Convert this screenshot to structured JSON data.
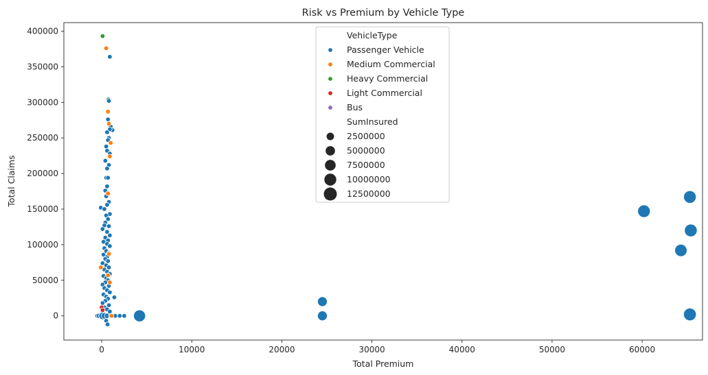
{
  "chart_data": {
    "type": "scatter",
    "title": "Risk vs Premium by Vehicle Type",
    "xlabel": "Total Premium",
    "ylabel": "Total Claims",
    "xlim": [
      -4200,
      66700
    ],
    "ylim": [
      -34000,
      412000
    ],
    "xticks": [
      0,
      10000,
      20000,
      30000,
      40000,
      50000,
      60000
    ],
    "yticks": [
      0,
      50000,
      100000,
      150000,
      200000,
      250000,
      300000,
      350000,
      400000
    ],
    "grid": false,
    "legend": {
      "placement": "top-center",
      "hue_title": "VehicleType",
      "size_title": "SumInsured",
      "hue_entries": [
        {
          "name": "Passenger Vehicle",
          "color": "#1f77b4"
        },
        {
          "name": "Medium Commercial",
          "color": "#ff7f0e"
        },
        {
          "name": "Heavy Commercial",
          "color": "#2ca02c"
        },
        {
          "name": "Light Commercial",
          "color": "#d62728"
        },
        {
          "name": "Bus",
          "color": "#9467bd"
        }
      ],
      "size_entries": [
        {
          "label": "2500000",
          "value": 2500000
        },
        {
          "label": "5000000",
          "value": 5000000
        },
        {
          "label": "7500000",
          "value": 7500000
        },
        {
          "label": "10000000",
          "value": 10000000
        },
        {
          "label": "12500000",
          "value": 12500000
        }
      ]
    },
    "series": [
      {
        "name": "Passenger Vehicle",
        "color": "#1f77b4",
        "points": [
          [
            900,
            364000,
            300000
          ],
          [
            750,
            304000,
            300000
          ],
          [
            800,
            302000,
            300000
          ],
          [
            700,
            276000,
            300000
          ],
          [
            1000,
            266000,
            300000
          ],
          [
            1200,
            261000,
            300000
          ],
          [
            900,
            262000,
            300000
          ],
          [
            600,
            258000,
            300000
          ],
          [
            800,
            250000,
            300000
          ],
          [
            700,
            247000,
            300000
          ],
          [
            500,
            238000,
            300000
          ],
          [
            600,
            232000,
            300000
          ],
          [
            900,
            228000,
            300000
          ],
          [
            400,
            218000,
            300000
          ],
          [
            800,
            212000,
            300000
          ],
          [
            600,
            207000,
            300000
          ],
          [
            500,
            194000,
            300000
          ],
          [
            700,
            194000,
            300000
          ],
          [
            600,
            182000,
            300000
          ],
          [
            400,
            176000,
            300000
          ],
          [
            700,
            172000,
            300000
          ],
          [
            500,
            168000,
            300000
          ],
          [
            800,
            160000,
            300000
          ],
          [
            600,
            156000,
            300000
          ],
          [
            -100,
            152000,
            300000
          ],
          [
            300,
            150000,
            300000
          ],
          [
            900,
            143000,
            300000
          ],
          [
            500,
            141000,
            300000
          ],
          [
            700,
            136000,
            300000
          ],
          [
            400,
            131000,
            300000
          ],
          [
            800,
            126000,
            300000
          ],
          [
            300,
            127000,
            300000
          ],
          [
            100,
            122000,
            300000
          ],
          [
            600,
            118000,
            300000
          ],
          [
            900,
            113000,
            300000
          ],
          [
            400,
            110000,
            300000
          ],
          [
            700,
            106000,
            300000
          ],
          [
            200,
            104000,
            300000
          ],
          [
            600,
            101000,
            300000
          ],
          [
            900,
            98000,
            300000
          ],
          [
            300,
            95000,
            300000
          ],
          [
            500,
            91000,
            300000
          ],
          [
            800,
            88000,
            300000
          ],
          [
            200,
            86000,
            300000
          ],
          [
            600,
            83000,
            300000
          ],
          [
            400,
            80000,
            300000
          ],
          [
            700,
            77000,
            300000
          ],
          [
            100,
            74000,
            300000
          ],
          [
            500,
            71000,
            300000
          ],
          [
            800,
            68000,
            300000
          ],
          [
            300,
            65000,
            300000
          ],
          [
            600,
            62000,
            300000
          ],
          [
            900,
            59000,
            300000
          ],
          [
            200,
            56000,
            300000
          ],
          [
            500,
            53000,
            300000
          ],
          [
            700,
            50000,
            300000
          ],
          [
            400,
            47000,
            300000
          ],
          [
            100,
            44000,
            300000
          ],
          [
            800,
            42000,
            300000
          ],
          [
            300,
            39000,
            300000
          ],
          [
            600,
            36000,
            300000
          ],
          [
            900,
            33000,
            300000
          ],
          [
            200,
            30000,
            300000
          ],
          [
            500,
            27000,
            300000
          ],
          [
            1400,
            26000,
            300000
          ],
          [
            700,
            24000,
            300000
          ],
          [
            400,
            21000,
            300000
          ],
          [
            100,
            18000,
            300000
          ],
          [
            800,
            15000,
            300000
          ],
          [
            300,
            12000,
            300000
          ],
          [
            600,
            9000,
            300000
          ],
          [
            900,
            6000,
            300000
          ],
          [
            200,
            3000,
            300000
          ],
          [
            500,
            -7000,
            300000
          ],
          [
            650,
            -12000,
            300000
          ],
          [
            -500,
            0,
            300000
          ],
          [
            -300,
            0,
            600000
          ],
          [
            0,
            0,
            1200000
          ],
          [
            100,
            0,
            2400000
          ],
          [
            300,
            0,
            1200000
          ],
          [
            600,
            0,
            600000
          ],
          [
            1000,
            0,
            300000
          ],
          [
            1500,
            0,
            300000
          ],
          [
            2000,
            0,
            300000
          ],
          [
            2500,
            0,
            300000
          ],
          [
            4200,
            0,
            9800000
          ],
          [
            24500,
            20000,
            5500000
          ],
          [
            24500,
            0,
            5500000
          ],
          [
            60200,
            147000,
            11200000
          ],
          [
            64300,
            92000,
            10500000
          ],
          [
            65300,
            167000,
            11200000
          ],
          [
            65400,
            120000,
            11500000
          ],
          [
            65300,
            2000,
            11500000
          ]
        ]
      },
      {
        "name": "Medium Commercial",
        "color": "#ff7f0e",
        "points": [
          [
            500,
            376000,
            300000
          ],
          [
            700,
            287000,
            300000
          ],
          [
            800,
            270000,
            300000
          ],
          [
            1000,
            243000,
            300000
          ],
          [
            900,
            224000,
            300000
          ],
          [
            700,
            172000,
            300000
          ],
          [
            800,
            87000,
            300000
          ],
          [
            -100,
            68000,
            300000
          ],
          [
            700,
            57000,
            300000
          ],
          [
            900,
            47000,
            300000
          ],
          [
            1100,
            0,
            300000
          ]
        ]
      },
      {
        "name": "Heavy Commercial",
        "color": "#2ca02c",
        "points": [
          [
            100,
            393000,
            300000
          ]
        ]
      },
      {
        "name": "Light Commercial",
        "color": "#d62728",
        "points": [
          [
            0,
            12000,
            300000
          ],
          [
            100,
            8000,
            300000
          ]
        ]
      },
      {
        "name": "Bus",
        "color": "#9467bd",
        "points": []
      }
    ]
  }
}
